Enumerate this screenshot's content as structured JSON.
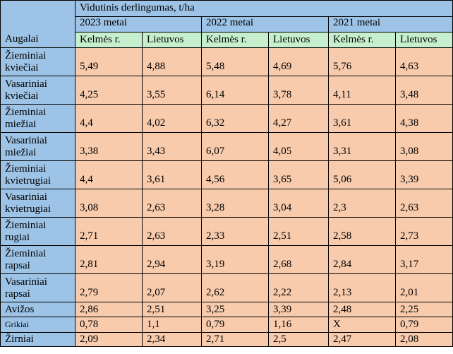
{
  "table": {
    "corner_label": "Augalai",
    "title": "Vidutinis derlingumas, t/ha",
    "years": [
      "2023 metai",
      "2022 metai",
      "2021 metai"
    ],
    "sub_headers": [
      "Kelmės r.",
      "Lietuvos"
    ],
    "rows": [
      {
        "crop": [
          "Žieminiai",
          "kviečiai"
        ],
        "values": [
          "5,49",
          "4,88",
          "5,48",
          "4,69",
          "5,76",
          "4,63"
        ]
      },
      {
        "crop": [
          "Vasariniai",
          "kviečiai"
        ],
        "values": [
          "4,25",
          "3,55",
          "6,14",
          "3,78",
          "4,11",
          "3,48"
        ]
      },
      {
        "crop": [
          "Žieminiai",
          "miežiai"
        ],
        "values": [
          "4,4",
          "4,02",
          "6,32",
          "4,27",
          "3,61",
          "4,38"
        ]
      },
      {
        "crop": [
          "Vasariniai",
          "miežiai"
        ],
        "values": [
          "3,38",
          "3,43",
          "6,07",
          "4,05",
          "3,31",
          "3,08"
        ]
      },
      {
        "crop": [
          "Žieminiai",
          "kvietrugiai"
        ],
        "values": [
          "4,4",
          "3,61",
          "4,56",
          "3,65",
          "5,06",
          "3,39"
        ]
      },
      {
        "crop": [
          "Vasariniai",
          "kvietrugiai"
        ],
        "values": [
          "3,08",
          "2,63",
          "3,28",
          "3,04",
          "2,3",
          "2,63"
        ]
      },
      {
        "crop": [
          "Žieminiai",
          "rugiai"
        ],
        "values": [
          "2,71",
          "2,63",
          "2,33",
          "2,51",
          "2,58",
          "2,73"
        ]
      },
      {
        "crop": [
          "Žieminiai",
          "rapsai"
        ],
        "values": [
          "2,81",
          "2,94",
          "3,19",
          "2,68",
          "2,84",
          "3,17"
        ]
      },
      {
        "crop": [
          "Vasariniai",
          "rapsai"
        ],
        "values": [
          "2,79",
          "2,07",
          "2,62",
          "2,22",
          "2,13",
          "2,01"
        ]
      },
      {
        "crop": [
          "Avižos"
        ],
        "values": [
          "2,86",
          "2,51",
          "3,25",
          "3,39",
          "2,48",
          "2,25"
        ]
      },
      {
        "crop": [
          "Grikiai"
        ],
        "values": [
          "0,78",
          "1,1",
          "0,79",
          "1,16",
          "X",
          "0,79"
        ]
      },
      {
        "crop": [
          "Žirniai"
        ],
        "values": [
          "2,09",
          "2,34",
          "2,71",
          "2,5",
          "2,47",
          "2,08"
        ]
      }
    ]
  }
}
